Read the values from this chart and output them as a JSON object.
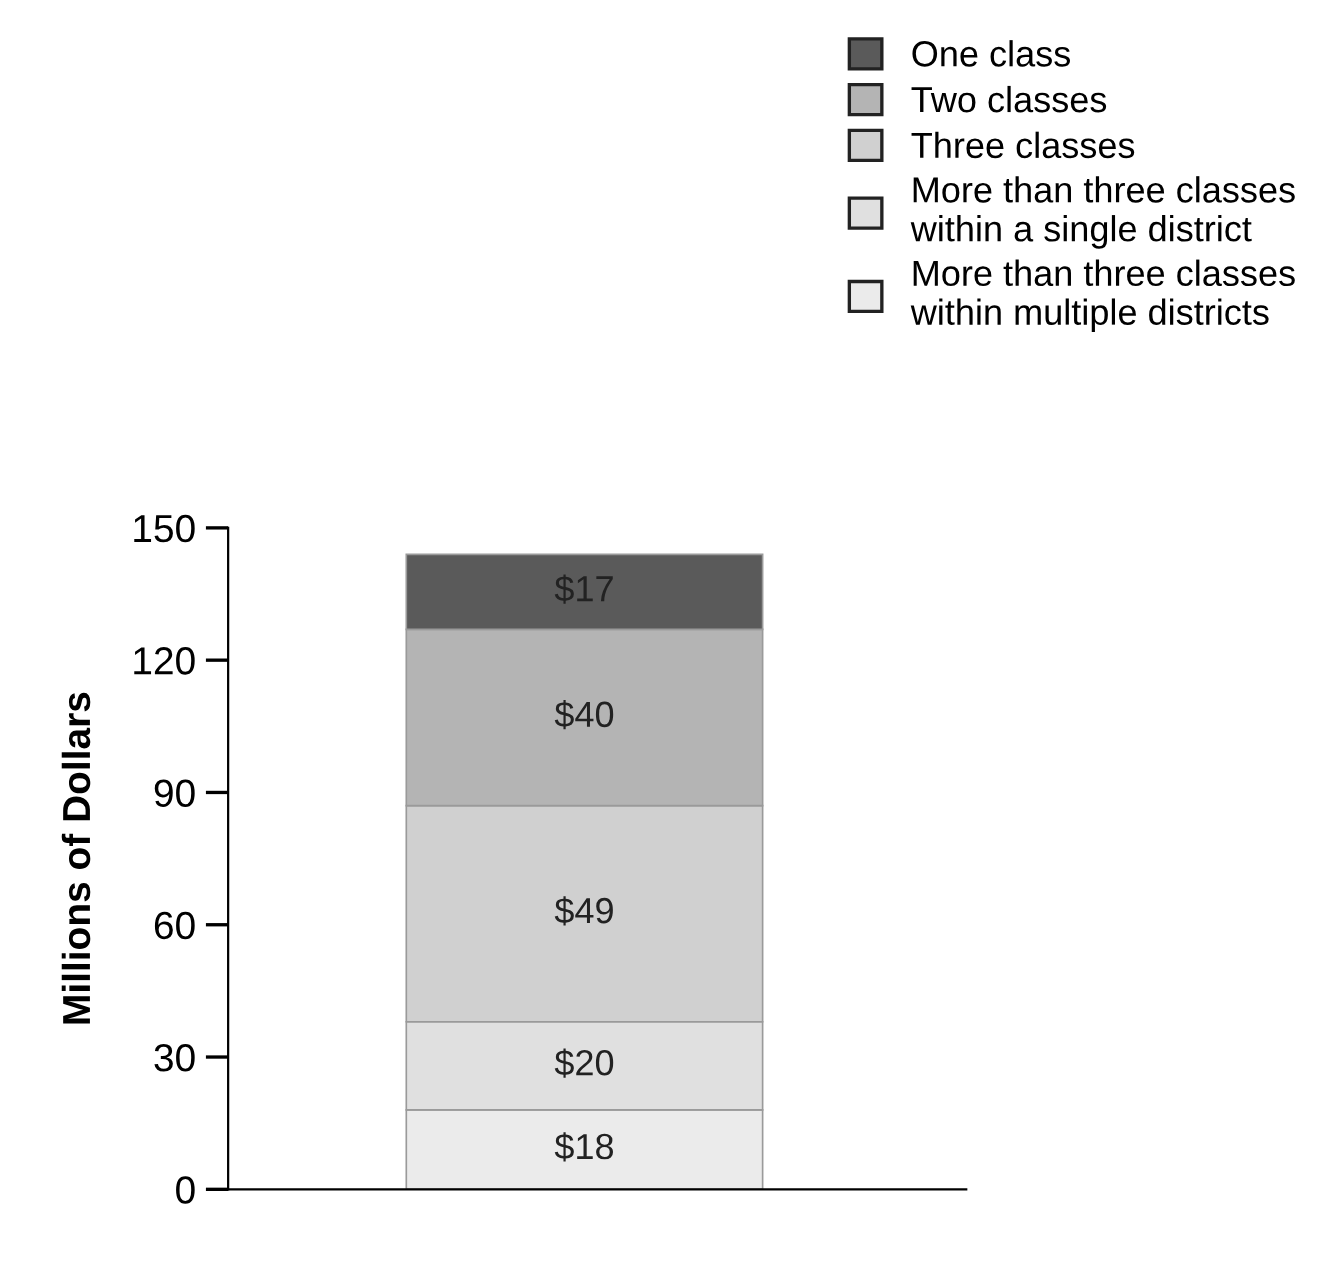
{
  "chart_data": {
    "type": "bar",
    "stacked": true,
    "ylabel": "Millions of Dollars",
    "categories": [
      null
    ],
    "series": [
      {
        "name": "More than three classes\nwithin multiple districts",
        "color": "#ebebeb",
        "values": [
          18
        ],
        "value_labels": [
          "$18"
        ]
      },
      {
        "name": "More than three classes\nwithin a single district",
        "color": "#e0e0e0",
        "values": [
          20
        ],
        "value_labels": [
          "$20"
        ]
      },
      {
        "name": "Three classes",
        "color": "#d0d0d0",
        "values": [
          49
        ],
        "value_labels": [
          "$49"
        ]
      },
      {
        "name": "Two classes",
        "color": "#b4b4b4",
        "values": [
          40
        ],
        "value_labels": [
          "$40"
        ]
      },
      {
        "name": "One class",
        "color": "#5a5a5a",
        "values": [
          17
        ],
        "value_labels": [
          "$17"
        ]
      }
    ],
    "ylim": [
      0,
      150
    ],
    "yticks": [
      0,
      30,
      60,
      90,
      120,
      150
    ],
    "grid": false,
    "legend": "top right"
  }
}
